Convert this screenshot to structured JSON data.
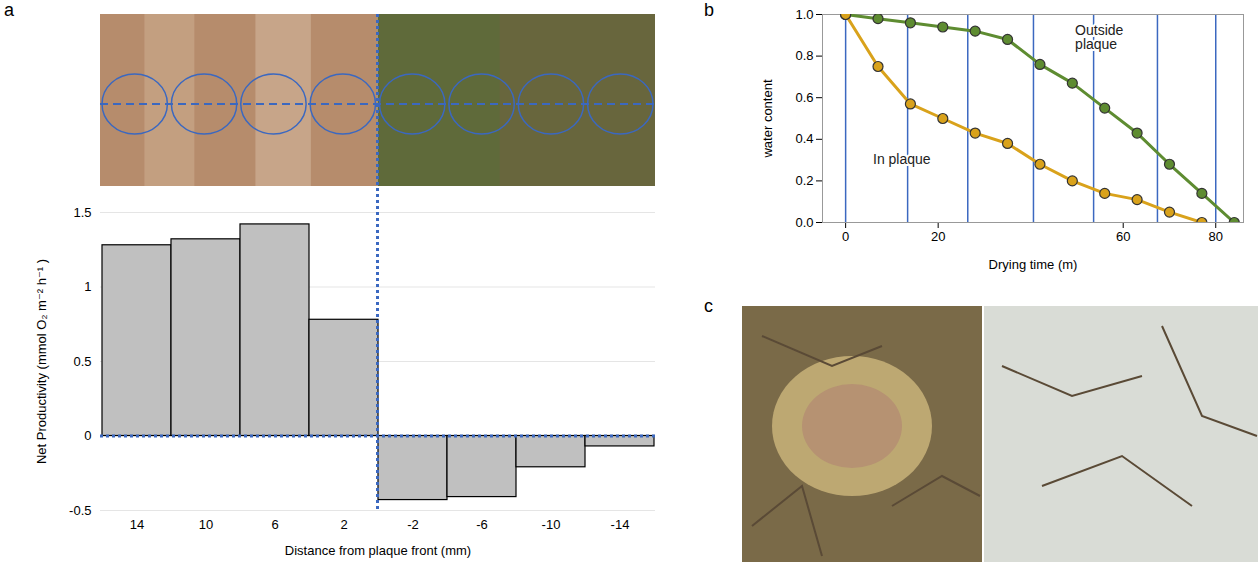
{
  "chart_data": [
    {
      "panel": "a",
      "type": "bar",
      "categories": [
        "14",
        "10",
        "6",
        "2",
        "-2",
        "-6",
        "-10",
        "-14"
      ],
      "values": [
        1.28,
        1.32,
        1.42,
        0.78,
        -0.43,
        -0.41,
        -0.21,
        -0.07
      ],
      "color": "#c0c0c0",
      "x_label": "Distance from plaque front (mm)",
      "y_label": "Net Productivity (mmol O₂ m⁻² h⁻¹ )",
      "ylim": [
        -0.5,
        1.5
      ],
      "yticks": [
        -0.5,
        0,
        0.5,
        1,
        1.5
      ],
      "grid": true
    },
    {
      "panel": "b",
      "type": "line",
      "x": [
        0,
        7,
        14,
        21,
        28,
        35,
        42,
        49,
        56,
        63,
        70,
        77,
        84
      ],
      "series": [
        {
          "name": "Outside plaque",
          "color": "#5e8c31",
          "marker": "circle",
          "values": [
            1.0,
            0.98,
            0.96,
            0.94,
            0.92,
            0.88,
            0.76,
            0.67,
            0.55,
            0.43,
            0.28,
            0.14,
            0.0
          ]
        },
        {
          "name": "In plaque",
          "color": "#d9a21b",
          "marker": "circle",
          "values": [
            1.0,
            0.75,
            0.57,
            0.5,
            0.43,
            0.38,
            0.28,
            0.2,
            0.14,
            0.11,
            0.05,
            0.0,
            null
          ]
        }
      ],
      "x_label": "Drying time (m)",
      "y_label": "water content",
      "xlim": [
        -5,
        86
      ],
      "xticks": [
        0,
        20,
        60,
        80
      ],
      "ylim": [
        0,
        1
      ],
      "yticks": [
        {
          "value": 0,
          "label": "0.0"
        },
        {
          "value": 0.2,
          "label": "0.2"
        },
        {
          "value": 0.4,
          "label": "0.4"
        },
        {
          "value": 0.6,
          "label": "0.6"
        },
        {
          "value": 0.8,
          "label": "0.8"
        },
        {
          "value": 1,
          "label": "1.0"
        }
      ],
      "vlines": [
        0,
        13.4,
        26.4,
        40.6,
        53.6,
        67.4,
        80
      ]
    },
    {
      "panel": "c",
      "type": "photo"
    }
  ]
}
